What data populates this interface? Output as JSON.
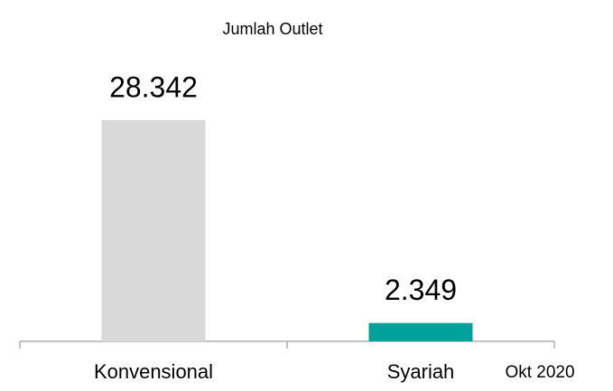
{
  "chart_data": {
    "type": "bar",
    "title": "Jumlah Outlet",
    "categories": [
      "Konvensional",
      "Syariah"
    ],
    "values": [
      28342,
      2349
    ],
    "value_labels": [
      "28.342",
      "2.349"
    ],
    "colors": [
      "#d9d9d9",
      "#00a19a"
    ],
    "annotation": "Okt 2020"
  }
}
